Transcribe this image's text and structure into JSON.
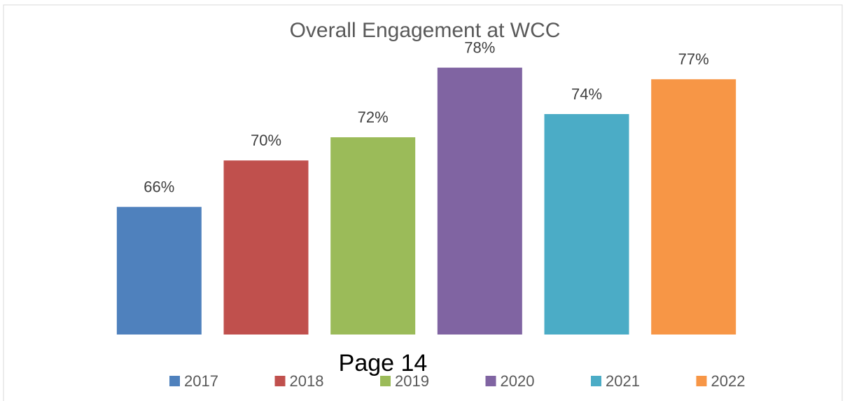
{
  "chart_data": {
    "type": "bar",
    "title": "Overall Engagement at WCC",
    "series": [
      {
        "name": "2017",
        "color": "#4f81bd",
        "values": [
          66
        ],
        "value_labels": [
          "66%"
        ]
      },
      {
        "name": "2018",
        "color": "#c0504d",
        "values": [
          70
        ],
        "value_labels": [
          "70%"
        ]
      },
      {
        "name": "2019",
        "color": "#9bbb59",
        "values": [
          72
        ],
        "value_labels": [
          "72%"
        ]
      },
      {
        "name": "2020",
        "color": "#8064a2",
        "values": [
          78
        ],
        "value_labels": [
          "78%"
        ]
      },
      {
        "name": "2021",
        "color": "#4bacc6",
        "values": [
          74
        ],
        "value_labels": [
          "74%"
        ]
      },
      {
        "name": "2022",
        "color": "#f79646",
        "values": [
          77
        ],
        "value_labels": [
          "77%"
        ]
      }
    ],
    "ylim": [
      55,
      80
    ],
    "grid": false,
    "legend": "bottom"
  },
  "page_footer": "Page 14"
}
